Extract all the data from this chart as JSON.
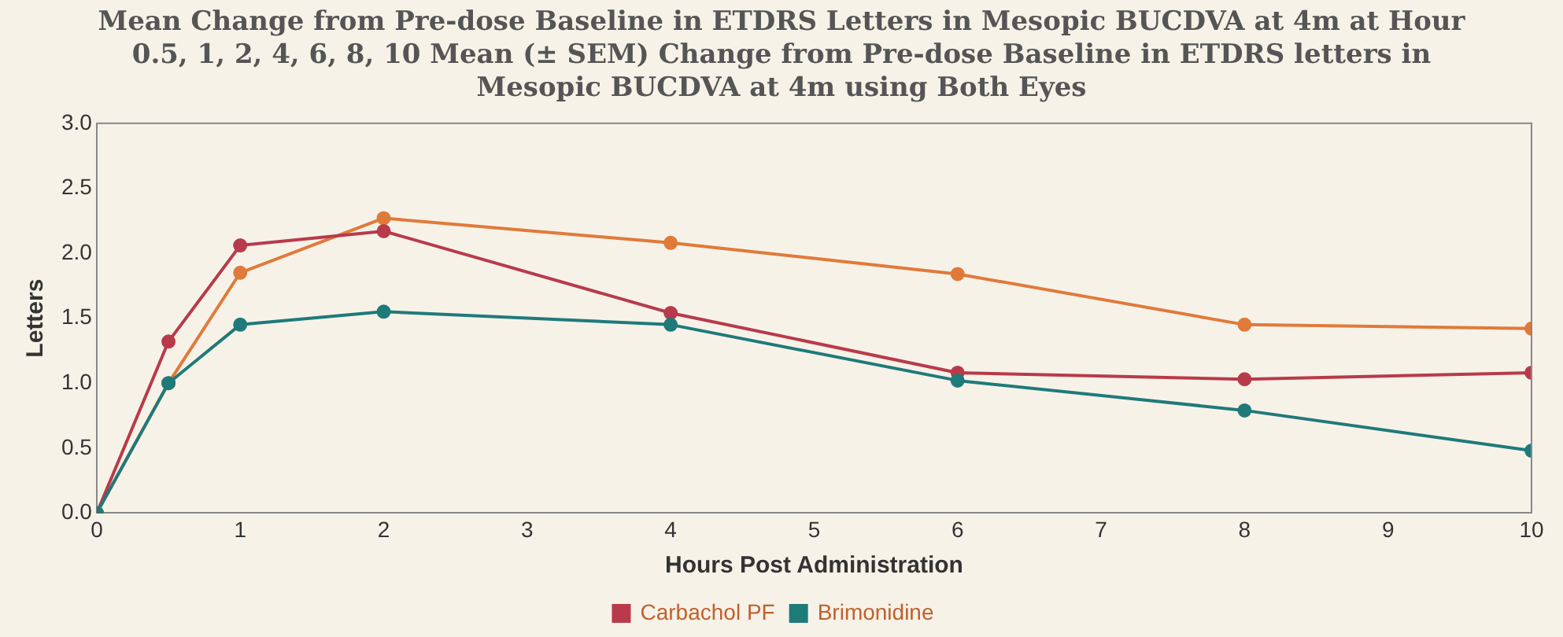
{
  "chart_data": {
    "type": "line",
    "title": "Mean Change from Pre-dose Baseline in ETDRS Letters in Mesopic BUCDVA at 4m at Hour 0.5, 1, 2, 4, 6, 8, 10 Mean (± SEM) Change from Pre-dose Baseline in ETDRS letters in Mesopic BUCDVA at 4m using Both Eyes",
    "xlabel": "Hours Post Administration",
    "ylabel": "Letters",
    "x": [
      0,
      0.5,
      1,
      2,
      4,
      6,
      8,
      10
    ],
    "series": [
      {
        "color": "#e07a3a",
        "values": [
          0,
          1.0,
          1.85,
          2.27,
          2.08,
          1.84,
          1.45,
          1.42
        ]
      },
      {
        "name": "Carbachol PF",
        "color": "#b83a4b",
        "values": [
          0,
          1.32,
          2.06,
          2.17,
          1.54,
          1.08,
          1.03,
          1.08
        ]
      },
      {
        "name": "Brimonidine",
        "color": "#1f7a7a",
        "values": [
          0,
          1.0,
          1.45,
          1.55,
          1.45,
          1.02,
          0.79,
          0.48
        ]
      }
    ],
    "xlim": [
      0,
      10
    ],
    "xticks": [
      0,
      1,
      2,
      3,
      4,
      5,
      6,
      7,
      8,
      9,
      10
    ],
    "ylim": [
      0,
      3
    ],
    "yticks": [
      {
        "value": 0,
        "label": "0.0"
      },
      {
        "value": 0.5,
        "label": "0.5"
      },
      {
        "value": 1,
        "label": "1.0"
      },
      {
        "value": 1.5,
        "label": "1.5"
      },
      {
        "value": 2,
        "label": "2.0"
      },
      {
        "value": 2.5,
        "label": "2.5"
      },
      {
        "value": 3,
        "label": "3.0"
      }
    ],
    "grid": false,
    "legend": "bottom",
    "marker": "circle",
    "line_style": "solid"
  }
}
